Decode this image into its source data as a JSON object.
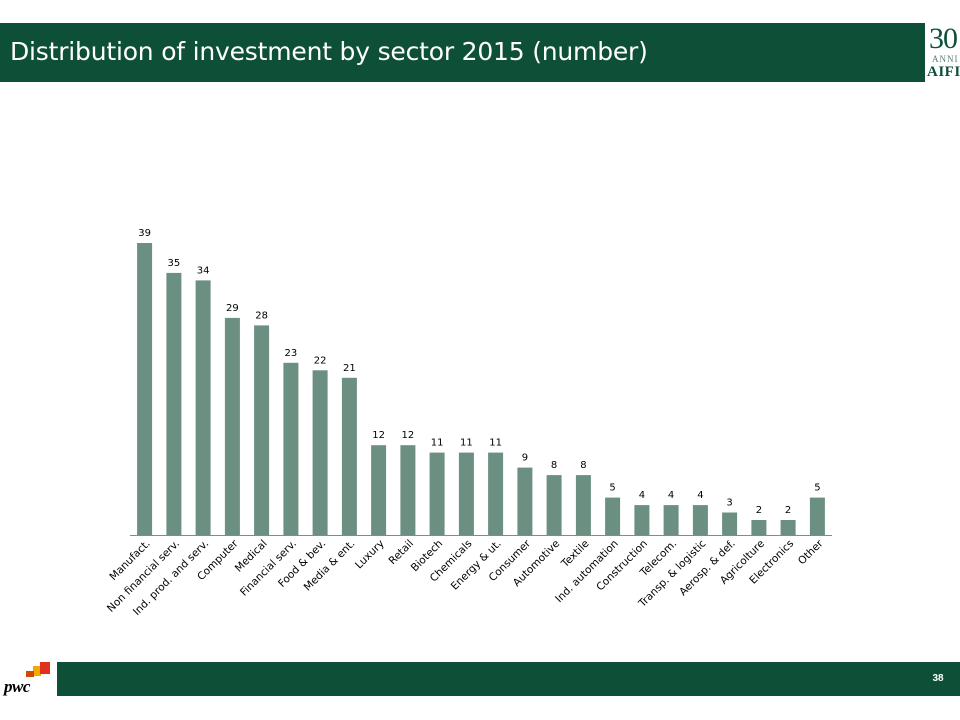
{
  "slide": {
    "title": "Distribution of investment by sector 2015 (number)",
    "page_number": "38",
    "brand_color": "#0e5037"
  },
  "logos": {
    "aifi_number": "30",
    "aifi_anni": "ANNI",
    "aifi_name": "AIFI",
    "pwc_text": "pwc"
  },
  "chart_data": {
    "type": "bar",
    "categories": [
      "Manufact.",
      "Non financial serv.",
      "Ind. prod. and serv.",
      "Computer",
      "Medical",
      "Financial serv.",
      "Food & bev.",
      "Media & ent.",
      "Luxury",
      "Retail",
      "Biotech",
      "Chemicals",
      "Energy & ut.",
      "Consumer",
      "Automotive",
      "Textile",
      "Ind. automation",
      "Construction",
      "Telecom.",
      "Transp. & logistic",
      "Aerosp. & def.",
      "Agricolture",
      "Electronics",
      "Other"
    ],
    "values": [
      39,
      35,
      34,
      29,
      28,
      23,
      22,
      21,
      12,
      12,
      11,
      11,
      11,
      9,
      8,
      8,
      5,
      4,
      4,
      4,
      3,
      2,
      2,
      5
    ],
    "title": "",
    "xlabel": "",
    "ylabel": "",
    "ylim": [
      0,
      40
    ],
    "bar_color": "#6b8f80",
    "data_labels": true,
    "grid": false,
    "legend": "none"
  }
}
